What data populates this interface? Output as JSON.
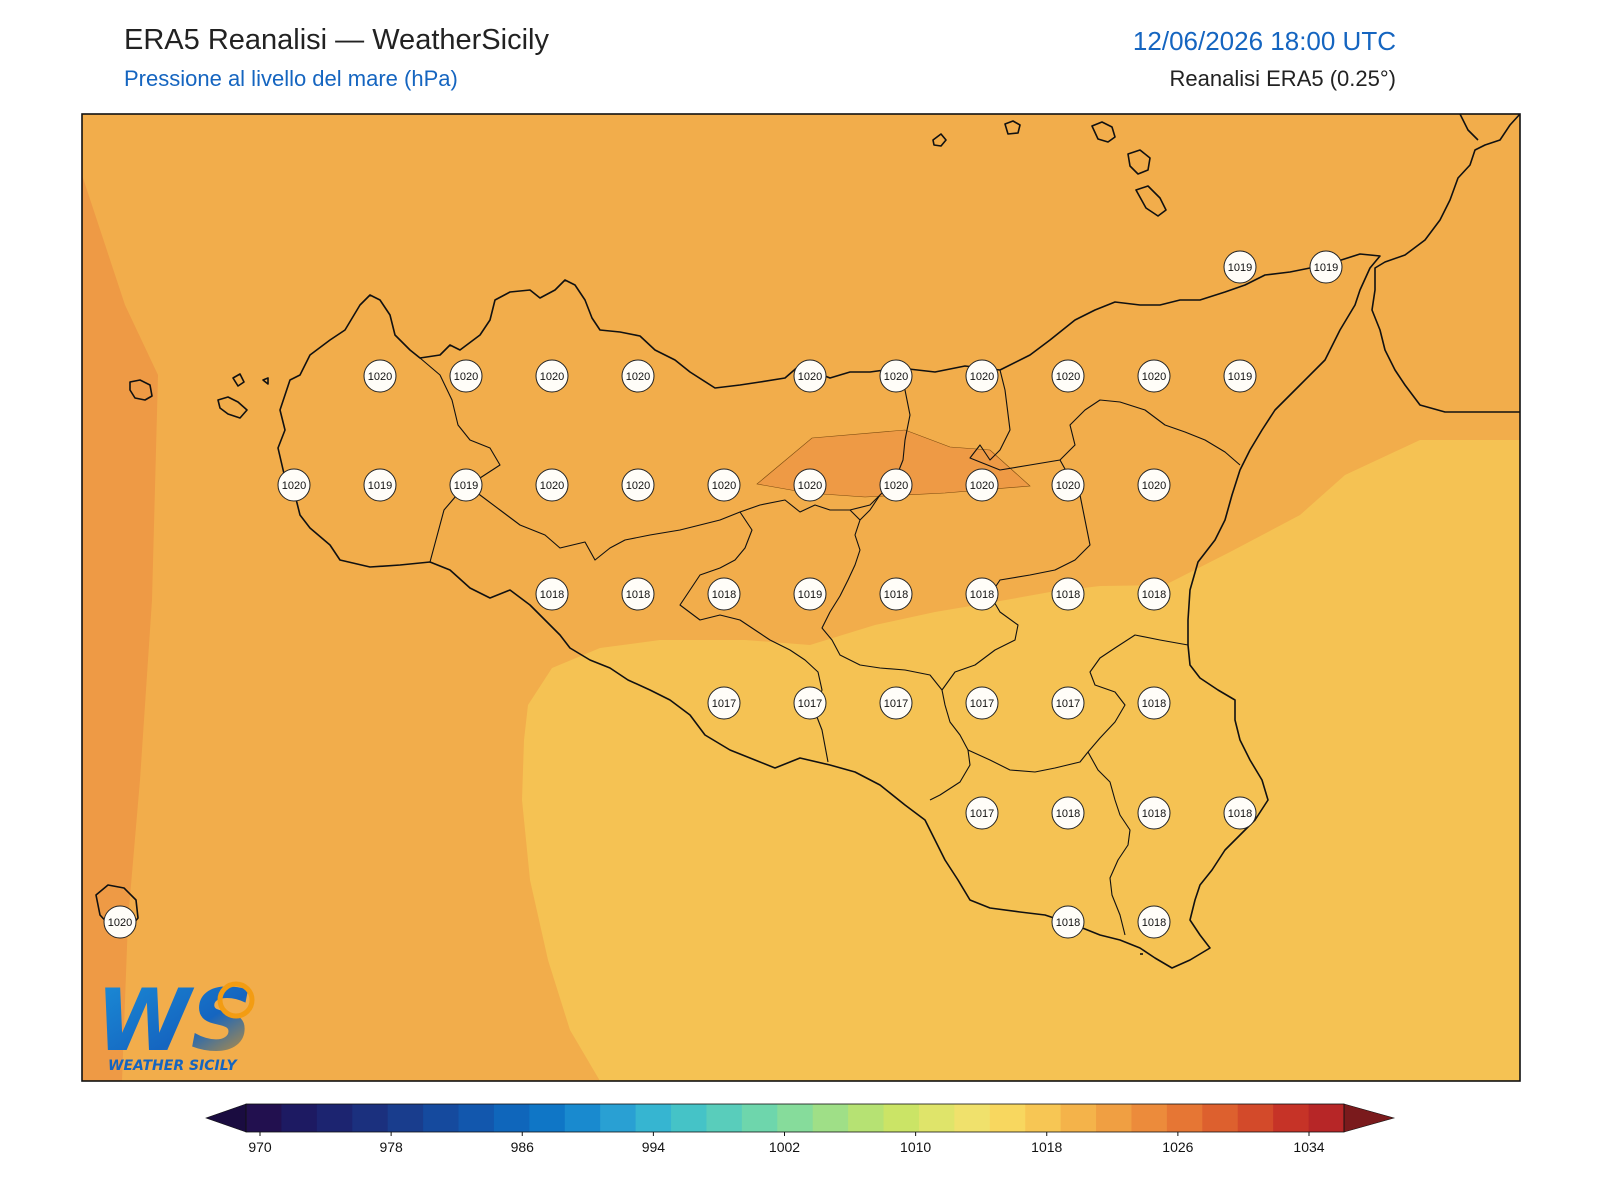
{
  "header": {
    "title": "ERA5 Reanalisi — WeatherSicily",
    "subtitle": "Pressione al livello del mare (hPa)",
    "datetime": "12/06/2026 18:00 UTC",
    "source": "Reanalisi ERA5 (0.25°)"
  },
  "logo": {
    "letters": "WS",
    "name": "WEATHER SICILY"
  },
  "colors": {
    "field_1020": "#ee9a45",
    "field_1019": "#f2ad4b",
    "field_1018": "#f5c253",
    "field_1021": "#ee9a45",
    "coast": "#111111",
    "accent": "#1565c0"
  },
  "colorbar": {
    "min": 970,
    "max": 1034,
    "step": 2,
    "tick_labels": [
      "970",
      "978",
      "986",
      "994",
      "1002",
      "1010",
      "1018",
      "1026",
      "1034"
    ],
    "colors": [
      "#22104f",
      "#1d1a62",
      "#1c2470",
      "#1b307e",
      "#193d8d",
      "#154a9e",
      "#1257ad",
      "#0f66bb",
      "#0f76c6",
      "#198acf",
      "#29a0d3",
      "#36b5d1",
      "#45c3c7",
      "#59cdbb",
      "#6ed6ac",
      "#86dc9b",
      "#9fdf87",
      "#b6e273",
      "#cbe466",
      "#dfe46a",
      "#f0e16c",
      "#f8d75f",
      "#f7c654",
      "#f4b34a",
      "#f09f42",
      "#ec8b3b",
      "#e67634",
      "#dd602e",
      "#d34a2a",
      "#c63327",
      "#b72627"
    ]
  },
  "stations": [
    {
      "id": "s1",
      "value": "1020"
    },
    {
      "id": "s2",
      "value": "1020"
    },
    {
      "id": "s3",
      "value": "1020"
    },
    {
      "id": "s4",
      "value": "1020"
    },
    {
      "id": "s5",
      "value": "1020"
    },
    {
      "id": "s6",
      "value": "1020"
    },
    {
      "id": "s7",
      "value": "1020"
    },
    {
      "id": "s8",
      "value": "1020"
    },
    {
      "id": "s9",
      "value": "1020"
    },
    {
      "id": "s10",
      "value": "1019"
    },
    {
      "id": "s11",
      "value": "1019"
    },
    {
      "id": "s12",
      "value": "1019"
    },
    {
      "id": "s13",
      "value": "1020"
    },
    {
      "id": "s14",
      "value": "1019"
    },
    {
      "id": "s15",
      "value": "1019"
    },
    {
      "id": "s16",
      "value": "1020"
    },
    {
      "id": "s17",
      "value": "1020"
    },
    {
      "id": "s18",
      "value": "1020"
    },
    {
      "id": "s19",
      "value": "1020"
    },
    {
      "id": "s20",
      "value": "1020"
    },
    {
      "id": "s21",
      "value": "1020"
    },
    {
      "id": "s22",
      "value": "1020"
    },
    {
      "id": "s23",
      "value": "1020"
    },
    {
      "id": "s24",
      "value": "1018"
    },
    {
      "id": "s25",
      "value": "1018"
    },
    {
      "id": "s26",
      "value": "1018"
    },
    {
      "id": "s27",
      "value": "1019"
    },
    {
      "id": "s28",
      "value": "1018"
    },
    {
      "id": "s29",
      "value": "1018"
    },
    {
      "id": "s30",
      "value": "1018"
    },
    {
      "id": "s31",
      "value": "1018"
    },
    {
      "id": "s32",
      "value": "1017"
    },
    {
      "id": "s33",
      "value": "1017"
    },
    {
      "id": "s34",
      "value": "1017"
    },
    {
      "id": "s35",
      "value": "1017"
    },
    {
      "id": "s36",
      "value": "1017"
    },
    {
      "id": "s37",
      "value": "1018"
    },
    {
      "id": "s38",
      "value": "1017"
    },
    {
      "id": "s39",
      "value": "1018"
    },
    {
      "id": "s40",
      "value": "1018"
    },
    {
      "id": "s41",
      "value": "1018"
    },
    {
      "id": "s42",
      "value": "1018"
    },
    {
      "id": "s43",
      "value": "1018"
    },
    {
      "id": "s44",
      "value": "1020"
    }
  ]
}
